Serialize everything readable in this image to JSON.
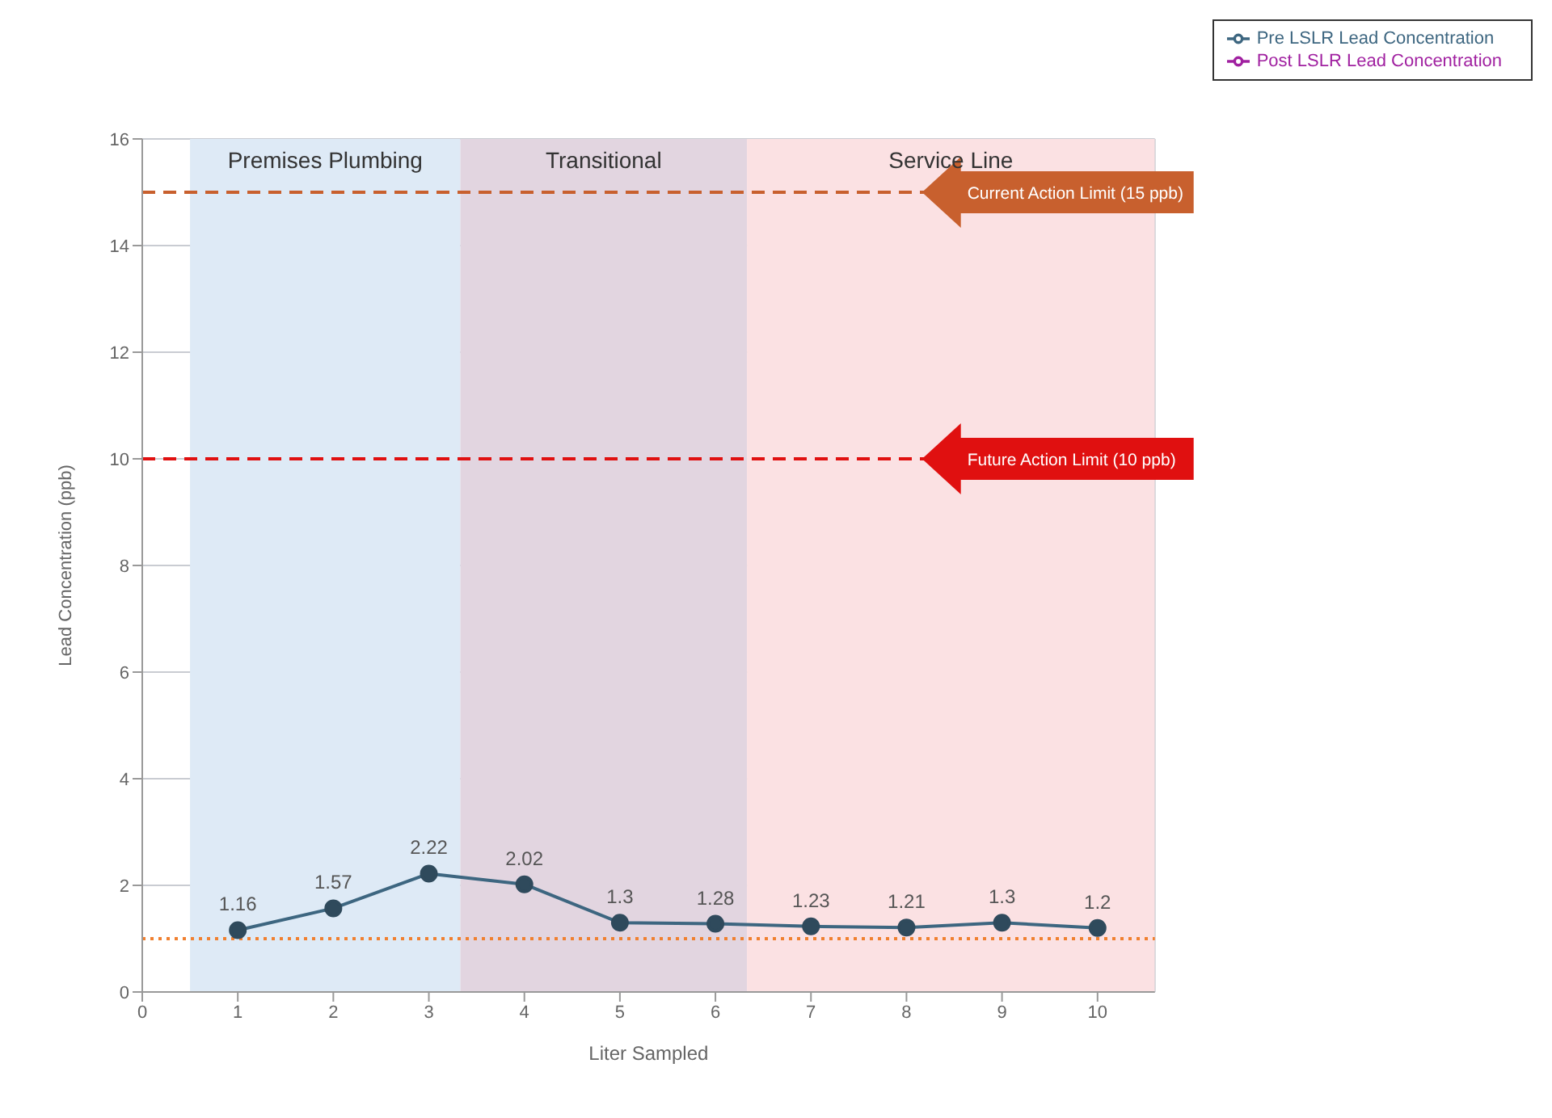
{
  "chart_data": {
    "type": "line",
    "xlabel": "Liter Sampled",
    "ylabel": "Lead Concentration (ppb)",
    "x": [
      1,
      2,
      3,
      4,
      5,
      6,
      7,
      8,
      9,
      10
    ],
    "series": [
      {
        "name": "Pre LSLR Lead Concentration",
        "color": "#3d6680",
        "values": [
          1.16,
          1.57,
          2.22,
          2.02,
          1.3,
          1.28,
          1.23,
          1.21,
          1.3,
          1.2
        ]
      },
      {
        "name": "Post LSLR Lead Concentration",
        "color": "#a020a0",
        "values": [
          null,
          null,
          null,
          null,
          null,
          null,
          null,
          null,
          null,
          null
        ]
      }
    ],
    "xlim": [
      0,
      10.6
    ],
    "xticks": [
      0,
      1,
      2,
      3,
      4,
      5,
      6,
      7,
      8,
      9,
      10
    ],
    "ylim": [
      0,
      16
    ],
    "yticks": [
      0,
      2,
      4,
      6,
      8,
      10,
      12,
      14,
      16
    ],
    "bands": [
      {
        "axis": "x",
        "from": 0.5,
        "to": 3.33,
        "label": "Premises Plumbing",
        "color": "#deeaf6"
      },
      {
        "axis": "x",
        "from": 3.33,
        "to": 6.33,
        "label": "Transitional",
        "color": "#e2d5e0"
      },
      {
        "axis": "x",
        "from": 6.33,
        "to": 10.6,
        "label": "Service Line",
        "color": "#fbe1e3"
      }
    ],
    "ref_lines": [
      {
        "axis": "y",
        "value": 15,
        "label": "Current Action Limit (15 ppb)",
        "color": "#c8602e",
        "line_style": "dashed"
      },
      {
        "axis": "y",
        "value": 10,
        "label": "Future Action Limit (10 ppb)",
        "color": "#e01010",
        "line_style": "dashed"
      },
      {
        "axis": "y",
        "value": 1,
        "label": null,
        "color": "#f08030",
        "line_style": "dotted"
      }
    ],
    "data_labels": true,
    "grid": true,
    "legend": "top right",
    "marker": "circle",
    "line_style": "solid"
  }
}
